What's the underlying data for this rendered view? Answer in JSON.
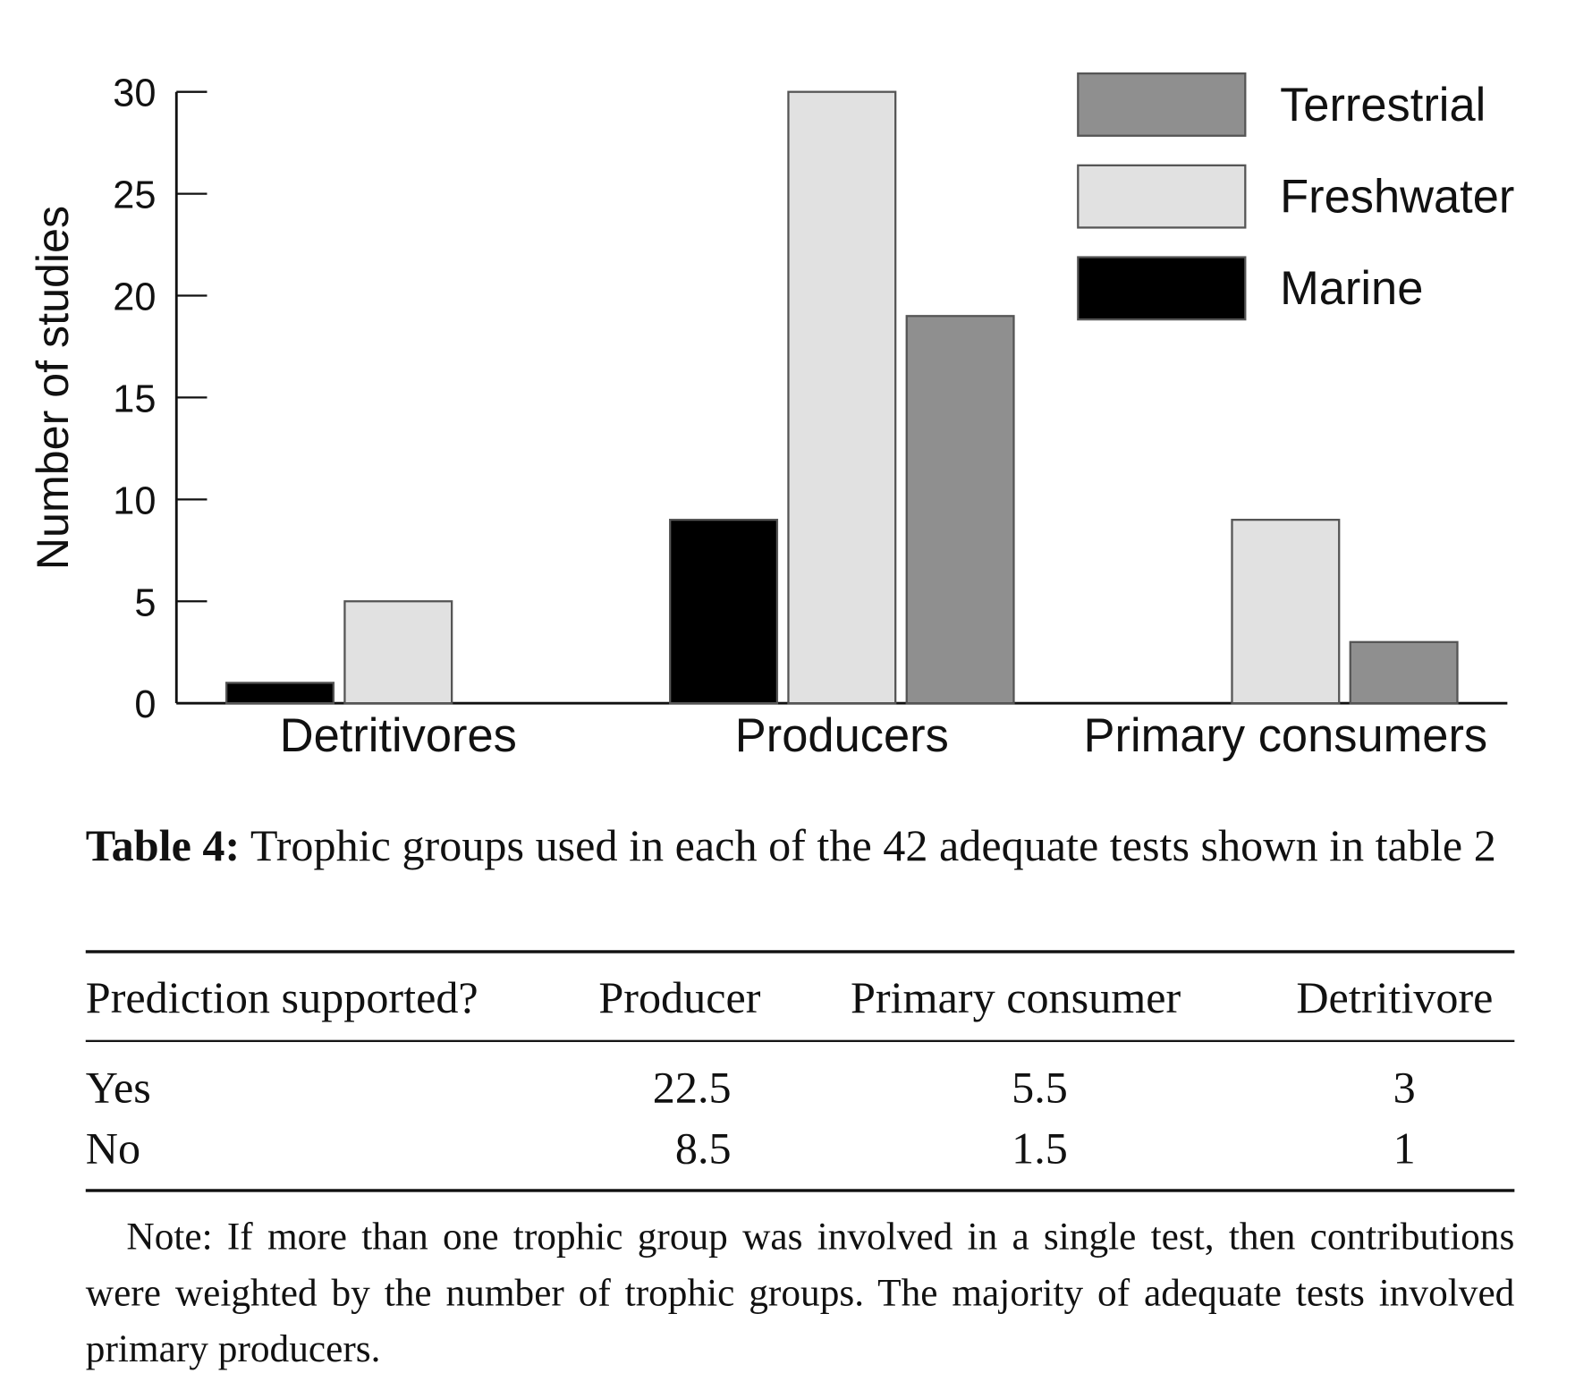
{
  "chart_data": {
    "type": "bar",
    "y_label": "Number of studies",
    "categories": [
      "Detritivores",
      "Producers",
      "Primary consumers"
    ],
    "series": [
      {
        "name": "Terrestrial",
        "color": "#8f8f8f",
        "values": [
          0,
          19,
          3
        ]
      },
      {
        "name": "Freshwater",
        "color": "#e1e1e1",
        "values": [
          5,
          30,
          9
        ]
      },
      {
        "name": "Marine",
        "color": "#000000",
        "values": [
          1,
          9,
          0
        ]
      }
    ],
    "ylim": [
      0,
      30
    ],
    "yticks": [
      0,
      5,
      10,
      15,
      20,
      25,
      30
    ],
    "legend": "top-right"
  },
  "table": {
    "caption_label": "Table 4:",
    "caption": "Trophic groups used in each of the 42 adequate tests shown in table 2",
    "header": [
      "Prediction supported?",
      "Producer",
      "Primary consumer",
      "Detritivore"
    ],
    "rows": [
      [
        "Yes",
        22.5,
        5.5,
        3
      ],
      [
        "No",
        8.5,
        1.5,
        1
      ]
    ]
  },
  "note": "Note: If more than one trophic group was involved in a single test, then contributions were weighted by the number of trophic groups. The majority of adequate tests involved primary producers."
}
